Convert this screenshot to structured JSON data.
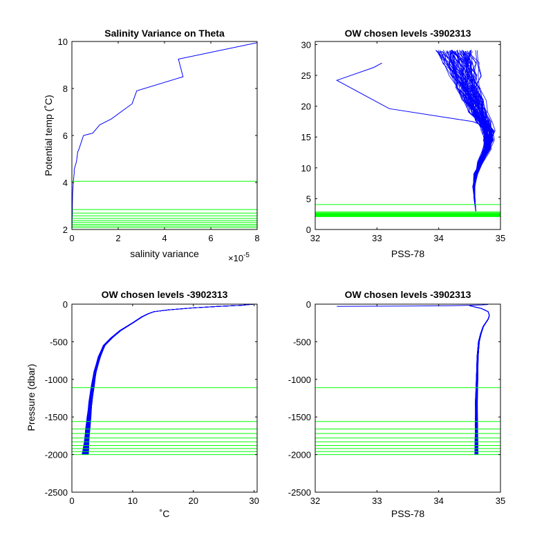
{
  "colors": {
    "profile": "#0000ff",
    "levels": "#00ff00",
    "axis": "#000000",
    "background": "#ffffff"
  },
  "chart_data": [
    {
      "id": "tl",
      "type": "line",
      "title": "Salinity Variance on Theta",
      "xlabel": "salinity variance",
      "ylabel": "Potential temp (˚C)",
      "xlim": [
        0,
        8e-05
      ],
      "ylim": [
        2,
        10
      ],
      "x_ticks": [
        0,
        2e-05,
        4e-05,
        6e-05,
        8e-05
      ],
      "x_tick_labels": [
        "0",
        "2",
        "4",
        "6",
        "8"
      ],
      "x_exponent_label": "×10",
      "x_exponent_value": "-5",
      "y_ticks": [
        2,
        4,
        6,
        8,
        10
      ],
      "y_tick_labels": [
        "2",
        "4",
        "6",
        "8",
        "10"
      ],
      "series": [
        {
          "kind": "line",
          "x": [
            8e-05,
            4.6e-05,
            4.8e-05,
            2.8e-05,
            2.6e-05,
            1.7e-05,
            1.2e-05,
            9e-06,
            5e-06,
            4e-06,
            3e-06,
            2.5e-06,
            2e-06,
            1e-06,
            1e-06,
            6e-07,
            3e-07,
            2e-07,
            2e-07,
            1e-07,
            1e-07,
            5e-08
          ],
          "y": [
            9.95,
            9.25,
            8.5,
            7.9,
            7.35,
            6.7,
            6.45,
            6.1,
            6.0,
            5.7,
            5.4,
            5.3,
            4.9,
            4.55,
            4.4,
            4.0,
            3.5,
            3.0,
            2.7,
            2.4,
            2.2,
            2.05
          ]
        }
      ],
      "levels": [
        4.05,
        2.85,
        2.7,
        2.58,
        2.47,
        2.38,
        2.3,
        2.22,
        2.15,
        2.09
      ]
    },
    {
      "id": "tr",
      "type": "line",
      "title": "OW chosen levels -3902313",
      "xlabel": "PSS-78",
      "ylabel": "",
      "xlim": [
        32,
        35
      ],
      "ylim": [
        0,
        30.5
      ],
      "x_ticks": [
        32,
        33,
        34,
        35
      ],
      "x_tick_labels": [
        "32",
        "33",
        "34",
        "35"
      ],
      "y_ticks": [
        0,
        5,
        10,
        15,
        20,
        25,
        30
      ],
      "y_tick_labels": [
        "0",
        "5",
        "10",
        "15",
        "20",
        "25",
        "30"
      ],
      "series": [
        {
          "kind": "line",
          "x": [
            34.6,
            34.58,
            34.57,
            34.6,
            34.68,
            34.78,
            34.82,
            34.8,
            34.75,
            34.68,
            34.55,
            33.2,
            32.35,
            32.95,
            33.08
          ],
          "y": [
            3.0,
            5.0,
            7.0,
            9.0,
            11.0,
            13.0,
            14.5,
            15.5,
            16.3,
            17.0,
            17.5,
            19.6,
            24.2,
            26.3,
            27.0
          ]
        },
        {
          "kind": "bundle",
          "x": [
            34.6,
            34.58,
            34.57,
            34.6,
            34.68,
            34.78,
            34.82,
            34.8,
            34.74,
            34.66,
            34.58,
            34.5,
            34.43,
            34.38,
            34.3
          ],
          "y": [
            3.0,
            5.0,
            7.0,
            9.0,
            11.0,
            13.0,
            14.5,
            16.0,
            17.5,
            19.0,
            21.0,
            23.0,
            25.0,
            27.0,
            29.0
          ],
          "count": 70,
          "spread": 0.55,
          "scatter": 0.22
        }
      ],
      "levels": [
        4.05,
        2.85,
        2.7,
        2.58,
        2.47,
        2.38,
        2.3,
        2.22,
        2.15,
        2.09
      ]
    },
    {
      "id": "bl",
      "type": "line",
      "title": "OW chosen levels -3902313",
      "xlabel": "˚C",
      "ylabel": "Pressure (dbar)",
      "xlim": [
        0,
        30.5
      ],
      "ylim": [
        -2500,
        0
      ],
      "x_ticks": [
        0,
        10,
        20,
        30
      ],
      "x_tick_labels": [
        "0",
        "10",
        "20",
        "30"
      ],
      "y_ticks": [
        -2500,
        -2000,
        -1500,
        -1000,
        -500,
        0
      ],
      "y_tick_labels": [
        "-2500",
        "-2000",
        "-1500",
        "-1000",
        "-500",
        "0"
      ],
      "series": [
        {
          "kind": "bundle",
          "x": [
            30,
            28,
            24,
            20,
            16,
            13.5,
            12.5,
            11.5,
            10,
            8,
            6.5,
            5.3,
            4.5,
            3.8,
            3.4,
            3.1,
            2.8,
            2.6,
            2.45,
            2.3,
            2.2
          ],
          "y": [
            0,
            -15,
            -30,
            -50,
            -75,
            -100,
            -130,
            -170,
            -250,
            -350,
            -450,
            -550,
            -700,
            -900,
            -1100,
            -1300,
            -1500,
            -1650,
            -1800,
            -1920,
            -2000
          ],
          "count": 70,
          "spread": 0.9,
          "scatter": 0.2
        }
      ],
      "levels": [
        -1110,
        -1560,
        -1660,
        -1720,
        -1780,
        -1830,
        -1880,
        -1920,
        -1960,
        -2000
      ]
    },
    {
      "id": "br",
      "type": "line",
      "title": "OW chosen levels -3902313",
      "xlabel": "PSS-78",
      "ylabel": "",
      "xlim": [
        32,
        35
      ],
      "ylim": [
        -2500,
        0
      ],
      "x_ticks": [
        32,
        33,
        34,
        35
      ],
      "x_tick_labels": [
        "32",
        "33",
        "34",
        "35"
      ],
      "y_ticks": [
        -2500,
        -2000,
        -1500,
        -1000,
        -500,
        0
      ],
      "y_tick_labels": [
        "-2500",
        "-2000",
        "-1500",
        "-1000",
        "-500",
        "0"
      ],
      "series": [
        {
          "kind": "line",
          "x": [
            32.35,
            33.5,
            34.2,
            34.5,
            34.7,
            34.8
          ],
          "y": [
            -30,
            -25,
            -20,
            -15,
            -10,
            -5
          ]
        },
        {
          "kind": "bundle",
          "x": [
            34.5,
            34.7,
            34.8,
            34.82,
            34.8,
            34.72,
            34.68,
            34.65,
            34.63,
            34.62,
            34.61,
            34.61,
            34.61,
            34.61
          ],
          "y": [
            -20,
            -60,
            -100,
            -150,
            -200,
            -300,
            -400,
            -500,
            -700,
            -1000,
            -1300,
            -1600,
            -1800,
            -2000
          ],
          "count": 70,
          "spread": 0.05,
          "scatter": 0.01
        }
      ],
      "levels": [
        -1110,
        -1560,
        -1660,
        -1720,
        -1780,
        -1830,
        -1880,
        -1920,
        -1960,
        -2000
      ]
    }
  ]
}
